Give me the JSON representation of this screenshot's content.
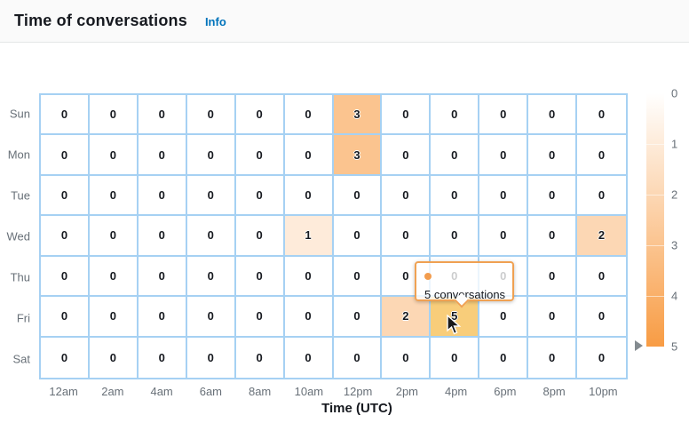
{
  "header": {
    "title": "Time of conversations",
    "info_label": "Info"
  },
  "chart_data": {
    "type": "heatmap",
    "title": "Time of conversations",
    "xlabel": "Time (UTC)",
    "x_categories": [
      "12am",
      "2am",
      "4am",
      "6am",
      "8am",
      "10am",
      "12pm",
      "2pm",
      "4pm",
      "6pm",
      "8pm",
      "10pm"
    ],
    "y_categories": [
      "Sun",
      "Mon",
      "Tue",
      "Wed",
      "Thu",
      "Fri",
      "Sat"
    ],
    "values": [
      [
        0,
        0,
        0,
        0,
        0,
        0,
        3,
        0,
        0,
        0,
        0,
        0
      ],
      [
        0,
        0,
        0,
        0,
        0,
        0,
        3,
        0,
        0,
        0,
        0,
        0
      ],
      [
        0,
        0,
        0,
        0,
        0,
        0,
        0,
        0,
        0,
        0,
        0,
        0
      ],
      [
        0,
        0,
        0,
        0,
        0,
        1,
        0,
        0,
        0,
        0,
        0,
        2
      ],
      [
        0,
        0,
        0,
        0,
        0,
        0,
        0,
        0,
        0,
        0,
        0,
        0
      ],
      [
        0,
        0,
        0,
        0,
        0,
        0,
        0,
        2,
        5,
        0,
        0,
        0
      ],
      [
        0,
        0,
        0,
        0,
        0,
        0,
        0,
        0,
        0,
        0,
        0,
        0
      ]
    ],
    "legend": {
      "position": "right",
      "min": 0,
      "max": 5,
      "tick_labels": [
        "0",
        "1",
        "2",
        "3",
        "4",
        "5"
      ],
      "pointer_value": 5
    },
    "colors": {
      "min_color": "#ffffff",
      "max_color": "#f89c44",
      "grid_line": "#a6d1f3",
      "hover_cell": "#f8cd7a",
      "tooltip_border": "#f0a152",
      "tooltip_dot": "#f29c4e"
    },
    "hovered_cell": {
      "day": "Fri",
      "time": "4pm",
      "value": 5
    }
  },
  "tooltip": {
    "text": "5 conversations"
  }
}
